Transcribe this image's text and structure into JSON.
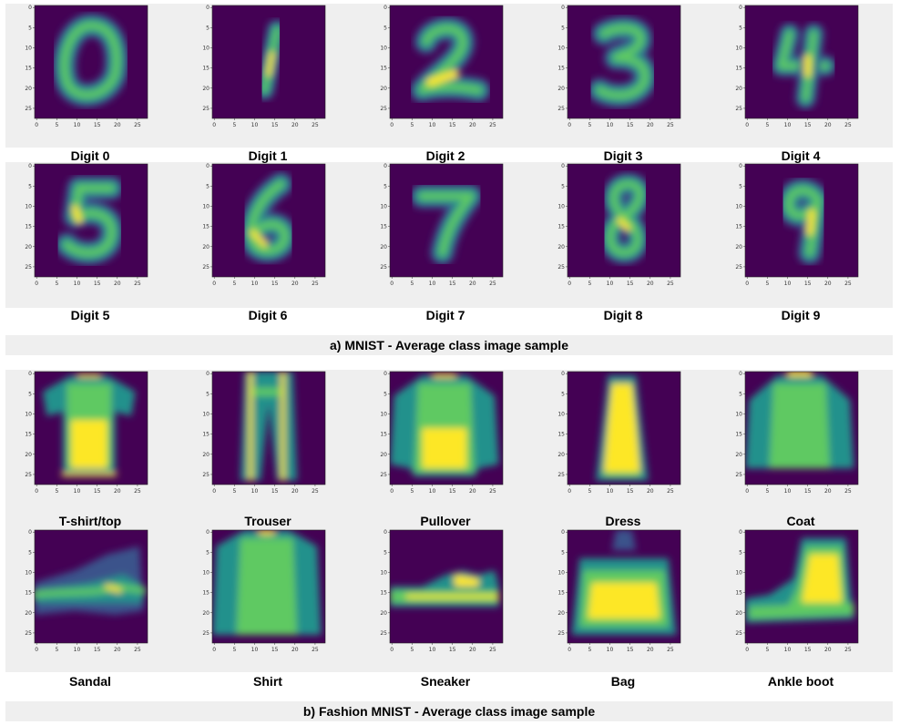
{
  "tick_labels": {
    "x": [
      "0",
      "5",
      "10",
      "15",
      "20",
      "25"
    ],
    "y": [
      "0",
      "5",
      "10",
      "15",
      "20",
      "25"
    ]
  },
  "colormap": [
    "#440154",
    "#3b528b",
    "#21918c",
    "#5ec962",
    "#fde725"
  ],
  "sections": [
    {
      "caption": "a)   MNIST - Average class image sample",
      "rows": [
        [
          {
            "label": "Digit 0",
            "shape": "digit0"
          },
          {
            "label": "Digit 1",
            "shape": "digit1"
          },
          {
            "label": "Digit 2",
            "shape": "digit2"
          },
          {
            "label": "Digit 3",
            "shape": "digit3"
          },
          {
            "label": "Digit 4",
            "shape": "digit4"
          }
        ],
        [
          {
            "label": "Digit 5",
            "shape": "digit5"
          },
          {
            "label": "Digit 6",
            "shape": "digit6"
          },
          {
            "label": "Digit 7",
            "shape": "digit7"
          },
          {
            "label": "Digit 8",
            "shape": "digit8"
          },
          {
            "label": "Digit 9",
            "shape": "digit9"
          }
        ]
      ]
    },
    {
      "caption": "b)   Fashion MNIST - Average class image sample",
      "rows": [
        [
          {
            "label": "T-shirt/top",
            "shape": "tshirt"
          },
          {
            "label": "Trouser",
            "shape": "trouser"
          },
          {
            "label": "Pullover",
            "shape": "pullover"
          },
          {
            "label": "Dress",
            "shape": "dress"
          },
          {
            "label": "Coat",
            "shape": "coat"
          }
        ],
        [
          {
            "label": "Sandal",
            "shape": "sandal"
          },
          {
            "label": "Shirt",
            "shape": "shirt"
          },
          {
            "label": "Sneaker",
            "shape": "sneaker"
          },
          {
            "label": "Bag",
            "shape": "bag"
          },
          {
            "label": "Ankle boot",
            "shape": "boot"
          }
        ]
      ]
    }
  ]
}
